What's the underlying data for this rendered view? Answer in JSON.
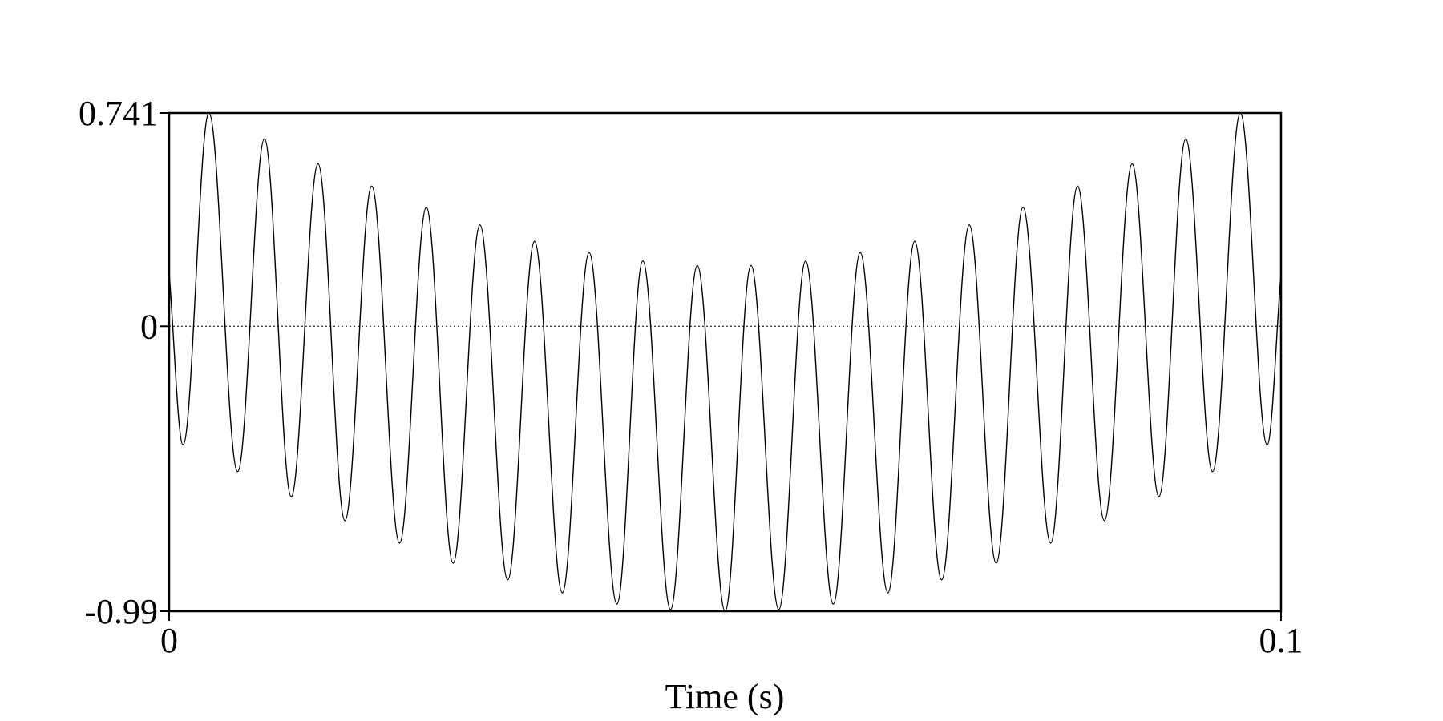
{
  "chart_data": {
    "type": "line",
    "xlabel": "Time (s)",
    "x": [
      0,
      0.00125,
      0.00358,
      0.00616,
      0.00857,
      0.01098,
      0.01339,
      0.01581,
      0.01822,
      0.02072,
      0.02313,
      0.02554,
      0.02795,
      0.03045,
      0.03286,
      0.03536,
      0.03777,
      0.04027,
      0.0426,
      0.04509,
      0.0475,
      0.05,
      0.05233,
      0.05483,
      0.05724,
      0.05973,
      0.06215,
      0.06464,
      0.06705,
      0.06947,
      0.07196,
      0.07438,
      0.07679,
      0.07928,
      0.0817,
      0.08411,
      0.08661,
      0.08902,
      0.09143,
      0.09384,
      0.09634,
      0.09875,
      0.1
    ],
    "values": [
      0.185,
      -0.412,
      0.741,
      -0.505,
      0.651,
      -0.592,
      0.564,
      -0.675,
      0.487,
      -0.753,
      0.413,
      -0.823,
      0.352,
      -0.881,
      0.295,
      -0.926,
      0.256,
      -0.965,
      0.227,
      -0.984,
      0.211,
      -0.99,
      0.211,
      -0.984,
      0.227,
      -0.965,
      0.256,
      -0.926,
      0.295,
      -0.881,
      0.352,
      -0.823,
      0.413,
      -0.753,
      0.487,
      -0.675,
      0.564,
      -0.592,
      0.651,
      -0.505,
      0.741,
      -0.412,
      0.185
    ],
    "color": "#000000",
    "xlim": [
      0,
      0.1
    ],
    "xticks": [
      0,
      0.1
    ],
    "ylim": [
      -0.99,
      0.741
    ],
    "yticks": [
      -0.99,
      0,
      0.741
    ],
    "zero_line": true
  }
}
